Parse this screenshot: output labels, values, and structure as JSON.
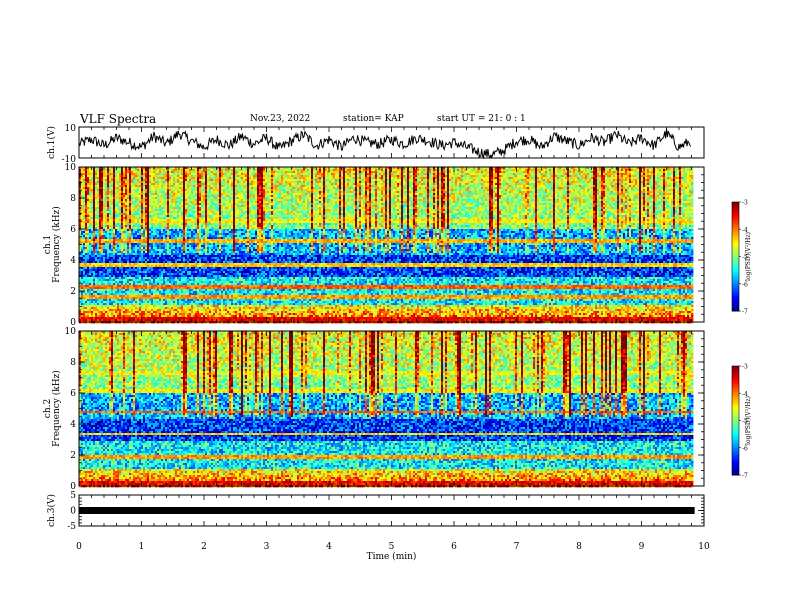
{
  "header": {
    "title": "VLF Spectra",
    "date": "Nov.23, 2022",
    "station": "station= KAP",
    "start": "start  UT  =   21: 0  : 1"
  },
  "chart_data": [
    {
      "type": "line",
      "panel": "ch1-waveform",
      "ylabel": "ch.1(V)",
      "ylim": [
        -10,
        10
      ],
      "yticks": [
        "10",
        "-10"
      ],
      "xlim": [
        0,
        10
      ],
      "series": [
        {
          "color": "#000000",
          "x": [
            0.0,
            0.2,
            0.4,
            0.6,
            0.8,
            1.0,
            1.2,
            1.4,
            1.6,
            1.8,
            2.0,
            2.2,
            2.4,
            2.6,
            2.8,
            3.0,
            3.2,
            3.4,
            3.6,
            3.8,
            4.0,
            4.2,
            4.4,
            4.6,
            4.8,
            5.0,
            5.2,
            5.4,
            5.6,
            5.8,
            6.0,
            6.2,
            6.4,
            6.6,
            6.8,
            7.0,
            7.2,
            7.4,
            7.6,
            7.8,
            8.0,
            8.2,
            8.4,
            8.6,
            8.8,
            9.0,
            9.2,
            9.4,
            9.6,
            9.8
          ],
          "values": [
            -1,
            2,
            -2,
            3,
            0,
            -3,
            4,
            -1,
            6,
            1,
            -3,
            2,
            -2,
            4,
            -1,
            3,
            -4,
            1,
            5,
            -2,
            2,
            -3,
            3,
            0,
            -1,
            2,
            -1,
            3,
            1,
            -2,
            0,
            -3,
            -6,
            -8,
            -5,
            1,
            2,
            -3,
            4,
            1,
            -2,
            3,
            0,
            5,
            -1,
            3,
            -2,
            6,
            -3,
            1
          ]
        }
      ]
    },
    {
      "type": "heatmap",
      "panel": "ch1-spectrogram",
      "ylabel": "ch.1\nFrequency  (kHz)",
      "ylim": [
        0,
        10
      ],
      "yticks": [
        "0",
        "2",
        "4",
        "6",
        "8",
        "10"
      ],
      "xlim": [
        0,
        10
      ],
      "colorbar": {
        "label": "log(PSD)(V²/Hz)",
        "range": [
          -7,
          -3
        ],
        "ticks": [
          "-3",
          "-4",
          "-5",
          "-6",
          "-7"
        ]
      },
      "bands_khz": [
        {
          "f": 0.3,
          "level": -3.2
        },
        {
          "f": 1.7,
          "level": -3.8
        },
        {
          "f": 2.3,
          "level": -3.6
        },
        {
          "f": 3.7,
          "level": -4.0
        },
        {
          "f": 5.3,
          "level": -3.9
        },
        {
          "f": 6.5,
          "level": -4.2
        }
      ]
    },
    {
      "type": "heatmap",
      "panel": "ch2-spectrogram",
      "ylabel": "ch.2\nFrequency  (kHz)",
      "ylim": [
        0,
        10
      ],
      "yticks": [
        "0",
        "2",
        "4",
        "6",
        "8",
        "10"
      ],
      "xlim": [
        0,
        10
      ],
      "colorbar": {
        "label": "log(PSD)(V²/Hz)",
        "range": [
          -7,
          -3
        ],
        "ticks": [
          "-3",
          "-4",
          "-5",
          "-6",
          "-7"
        ]
      },
      "bands_khz": [
        {
          "f": 0.3,
          "level": -3.2
        },
        {
          "f": 1.9,
          "level": -3.8
        },
        {
          "f": 3.4,
          "level": -4.0
        },
        {
          "f": 4.8,
          "level": -3.6
        },
        {
          "f": 6.2,
          "level": -4.2
        },
        {
          "f": 7.3,
          "level": -4.3
        }
      ]
    },
    {
      "type": "line",
      "panel": "ch3-waveform",
      "ylabel": "ch.3(V)",
      "ylim": [
        -5,
        5
      ],
      "yticks": [
        "5",
        "0",
        "-5"
      ],
      "xlim": [
        0,
        10
      ],
      "xlabel": "Time  (min)",
      "xticks": [
        "0",
        "1",
        "2",
        "3",
        "4",
        "5",
        "6",
        "7",
        "8",
        "9",
        "10"
      ],
      "series": [
        {
          "color": "#000000",
          "x": [
            0.0,
            9.85
          ],
          "values": [
            0.0,
            0.0
          ]
        }
      ]
    }
  ]
}
